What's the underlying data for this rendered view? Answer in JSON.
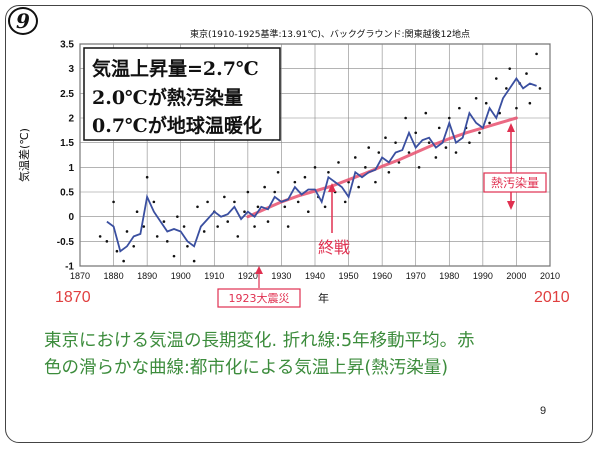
{
  "slide": {
    "badge": "9",
    "page_number": "9",
    "caption_line1": "東京における気温の長期変化. 折れ線:5年移動平均。赤",
    "caption_line2": "色の滑らかな曲線:都市化による気温上昇(熱汚染量)"
  },
  "chart_data": {
    "type": "line",
    "title": "東京(1910-1925基準:13.91℃)、バックグラウンド:関東越後12地点",
    "ylabel": "気温差(℃)",
    "xlabel": "年",
    "xlim": [
      1870,
      2010
    ],
    "ylim": [
      -1,
      3.5
    ],
    "x_ticks": [
      1870,
      1880,
      1890,
      1900,
      1910,
      1920,
      1930,
      1940,
      1950,
      1960,
      1970,
      1980,
      1990,
      2000,
      2010
    ],
    "y_ticks": [
      -1,
      -0.5,
      0,
      0.5,
      1,
      1.5,
      2,
      2.5,
      3,
      3.5
    ],
    "x_range_labels": {
      "start": "1870",
      "end": "2010"
    },
    "grid": true,
    "info_box": [
      "気温上昇量=2.7℃",
      "2.0℃が熱汚染量",
      "0.7℃が地球温暖化"
    ],
    "annotations": {
      "heat_pollution": "熱汚染量",
      "war_end": "終戦",
      "earthquake": "1923大震災"
    },
    "colors": {
      "moving_average": "#3a4fa0",
      "urban_curve": "#e8506e",
      "scatter": "#111111",
      "annotation": "#e03050",
      "axis_range": "#e04040"
    },
    "series": [
      {
        "kind": "moving_average",
        "x": [
          1878,
          1880,
          1882,
          1884,
          1886,
          1888,
          1890,
          1892,
          1894,
          1896,
          1898,
          1900,
          1902,
          1904,
          1906,
          1908,
          1910,
          1912,
          1914,
          1916,
          1918,
          1920,
          1922,
          1924,
          1926,
          1928,
          1930,
          1932,
          1934,
          1936,
          1938,
          1940,
          1942,
          1944,
          1946,
          1948,
          1950,
          1952,
          1954,
          1956,
          1958,
          1960,
          1962,
          1964,
          1966,
          1968,
          1970,
          1972,
          1974,
          1976,
          1978,
          1980,
          1982,
          1984,
          1986,
          1988,
          1990,
          1992,
          1994,
          1996,
          1998,
          2000,
          2002,
          2004,
          2006
        ],
        "y": [
          -0.1,
          -0.2,
          -0.7,
          -0.6,
          -0.4,
          -0.35,
          0.4,
          0.1,
          -0.1,
          -0.3,
          -0.25,
          -0.3,
          -0.5,
          -0.6,
          -0.2,
          -0.05,
          0.1,
          0.0,
          0.05,
          0.2,
          -0.05,
          0.1,
          0.0,
          0.2,
          0.15,
          0.4,
          0.3,
          0.35,
          0.6,
          0.45,
          0.55,
          0.55,
          0.3,
          0.8,
          0.7,
          0.6,
          0.4,
          0.9,
          0.8,
          0.9,
          0.95,
          1.2,
          1.1,
          1.3,
          1.35,
          1.7,
          1.4,
          1.55,
          1.6,
          1.4,
          1.5,
          1.9,
          1.5,
          1.6,
          2.1,
          1.9,
          1.8,
          2.2,
          2.0,
          2.4,
          2.6,
          2.8,
          2.6,
          2.7,
          2.65
        ]
      },
      {
        "kind": "urban_heat_curve",
        "x": [
          1920,
          1925,
          1930,
          1935,
          1940,
          1945,
          1950,
          1955,
          1960,
          1965,
          1970,
          1975,
          1980,
          1985,
          1990,
          1995,
          2000
        ],
        "y": [
          0.0,
          0.15,
          0.3,
          0.42,
          0.52,
          0.62,
          0.75,
          0.88,
          1.02,
          1.15,
          1.3,
          1.45,
          1.58,
          1.7,
          1.8,
          1.9,
          2.0
        ]
      },
      {
        "kind": "annual",
        "x": [
          1876,
          1878,
          1880,
          1881,
          1883,
          1884,
          1886,
          1887,
          1889,
          1890,
          1892,
          1893,
          1895,
          1896,
          1898,
          1899,
          1901,
          1902,
          1904,
          1905,
          1907,
          1908,
          1910,
          1911,
          1913,
          1914,
          1916,
          1917,
          1919,
          1920,
          1922,
          1923,
          1925,
          1926,
          1928,
          1929,
          1931,
          1932,
          1934,
          1935,
          1937,
          1938,
          1940,
          1941,
          1943,
          1944,
          1946,
          1947,
          1949,
          1950,
          1952,
          1953,
          1955,
          1956,
          1958,
          1959,
          1961,
          1962,
          1964,
          1965,
          1967,
          1968,
          1970,
          1971,
          1973,
          1974,
          1976,
          1977,
          1979,
          1980,
          1982,
          1983,
          1985,
          1986,
          1988,
          1989,
          1991,
          1992,
          1994,
          1995,
          1997,
          1998,
          2000,
          2001,
          2003,
          2004,
          2006,
          2007
        ],
        "y": [
          -0.4,
          -0.5,
          0.3,
          -0.7,
          -0.9,
          -0.3,
          -0.6,
          0.1,
          -0.2,
          0.8,
          0.3,
          -0.4,
          -0.1,
          -0.5,
          -0.8,
          0.0,
          -0.2,
          -0.6,
          -0.9,
          0.2,
          -0.3,
          0.3,
          0.1,
          -0.2,
          0.4,
          -0.1,
          0.3,
          -0.4,
          0.1,
          0.5,
          -0.2,
          0.2,
          0.6,
          -0.1,
          0.5,
          0.9,
          0.2,
          -0.2,
          0.7,
          0.3,
          0.8,
          0.1,
          1.0,
          0.4,
          0.2,
          0.9,
          0.5,
          1.1,
          0.3,
          0.7,
          1.2,
          0.6,
          1.0,
          1.4,
          0.7,
          1.3,
          1.6,
          0.9,
          1.5,
          1.1,
          2.0,
          1.3,
          1.7,
          1.0,
          2.1,
          1.5,
          1.2,
          1.8,
          1.4,
          2.0,
          1.3,
          2.2,
          1.8,
          1.5,
          2.4,
          1.7,
          2.3,
          1.9,
          2.8,
          2.1,
          2.6,
          3.0,
          2.2,
          2.7,
          2.9,
          2.3,
          3.3,
          2.6
        ]
      }
    ]
  }
}
